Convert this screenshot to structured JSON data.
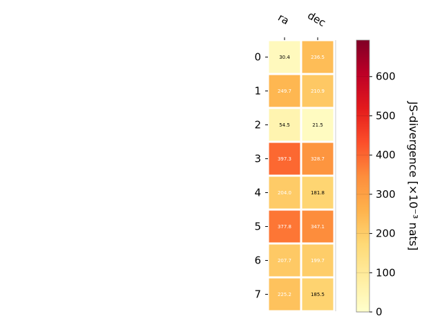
{
  "chart_data": {
    "type": "heatmap",
    "columns": [
      "ra",
      "dec"
    ],
    "rows": [
      "0",
      "1",
      "2",
      "3",
      "4",
      "5",
      "6",
      "7"
    ],
    "values": [
      [
        30.4,
        236.5
      ],
      [
        249.7,
        210.9
      ],
      [
        54.5,
        21.5
      ],
      [
        397.3,
        328.7
      ],
      [
        204.0,
        181.8
      ],
      [
        377.8,
        347.1
      ],
      [
        207.7,
        199.7
      ],
      [
        225.2,
        185.5
      ]
    ],
    "value_labels": [
      [
        "30.4",
        "236.5"
      ],
      [
        "249.7",
        "210.9"
      ],
      [
        "54.5",
        "21.5"
      ],
      [
        "397.3",
        "328.7"
      ],
      [
        "204.0",
        "181.8"
      ],
      [
        "377.8",
        "347.1"
      ],
      [
        "207.7",
        "199.7"
      ],
      [
        "225.2",
        "185.5"
      ]
    ],
    "label_colors": [
      [
        "#000000",
        "#ffffff"
      ],
      [
        "#ffffff",
        "#ffffff"
      ],
      [
        "#000000",
        "#000000"
      ],
      [
        "#ffffff",
        "#ffffff"
      ],
      [
        "#ffffff",
        "#000000"
      ],
      [
        "#ffffff",
        "#ffffff"
      ],
      [
        "#ffffff",
        "#ffffff"
      ],
      [
        "#ffffff",
        "#000000"
      ]
    ],
    "colormap": "YlOrRd",
    "colorbar": {
      "label": "JS-divergence [×10⁻³ nats]",
      "vmin": 0,
      "vmax": 693,
      "ticks": [
        0,
        100,
        200,
        300,
        400,
        500,
        600
      ],
      "tick_labels": [
        "0",
        "100",
        "200",
        "300",
        "400",
        "500",
        "600"
      ]
    },
    "grid": false
  }
}
